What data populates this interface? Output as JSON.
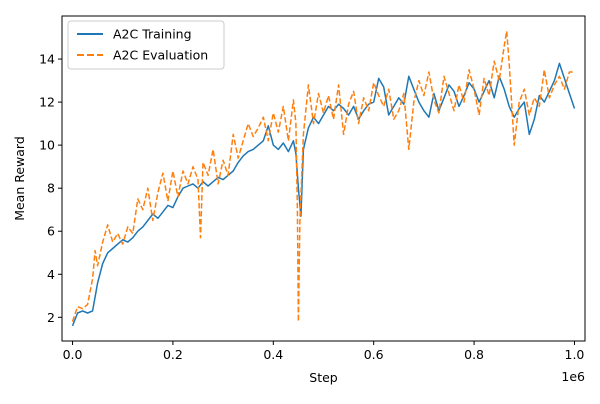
{
  "chart_data": {
    "type": "line",
    "title": "",
    "xlabel": "Step",
    "ylabel": "Mean Reward",
    "x_offset_label": "1e6",
    "x_scale": 1000000,
    "xlim": [
      -21000,
      1021000
    ],
    "ylim": [
      0.9,
      16.0
    ],
    "x_ticks": [
      0,
      200000,
      400000,
      600000,
      800000,
      1000000
    ],
    "x_tick_labels": [
      "0.0",
      "0.2",
      "0.4",
      "0.6",
      "0.8",
      "1.0"
    ],
    "y_ticks": [
      2,
      4,
      6,
      8,
      10,
      12,
      14
    ],
    "y_tick_labels": [
      "2",
      "4",
      "6",
      "8",
      "10",
      "12",
      "14"
    ],
    "grid": false,
    "legend_position": "top-left",
    "colors": {
      "training": "#1f77b4",
      "evaluation": "#ff7f0e"
    },
    "series": [
      {
        "name": "A2C Training",
        "style": "solid",
        "color": "#1f77b4",
        "x": [
          0,
          10000,
          20000,
          30000,
          40000,
          50000,
          60000,
          70000,
          80000,
          90000,
          100000,
          110000,
          120000,
          130000,
          140000,
          150000,
          160000,
          170000,
          180000,
          190000,
          200000,
          210000,
          220000,
          230000,
          240000,
          250000,
          260000,
          270000,
          280000,
          290000,
          300000,
          310000,
          320000,
          330000,
          340000,
          350000,
          360000,
          370000,
          380000,
          390000,
          400000,
          410000,
          420000,
          430000,
          440000,
          445000,
          450000,
          455000,
          460000,
          470000,
          480000,
          490000,
          500000,
          510000,
          520000,
          530000,
          540000,
          550000,
          560000,
          570000,
          580000,
          590000,
          600000,
          610000,
          620000,
          630000,
          640000,
          650000,
          660000,
          670000,
          680000,
          690000,
          700000,
          710000,
          720000,
          730000,
          740000,
          750000,
          760000,
          770000,
          780000,
          790000,
          800000,
          810000,
          820000,
          830000,
          840000,
          850000,
          860000,
          870000,
          880000,
          890000,
          900000,
          910000,
          920000,
          930000,
          940000,
          950000,
          960000,
          970000,
          980000,
          990000,
          1000000
        ],
        "y": [
          1.6,
          2.2,
          2.3,
          2.2,
          2.3,
          3.6,
          4.5,
          5.0,
          5.2,
          5.4,
          5.6,
          5.5,
          5.7,
          6.0,
          6.2,
          6.5,
          6.8,
          6.6,
          6.9,
          7.2,
          7.1,
          7.6,
          8.0,
          8.1,
          8.2,
          8.0,
          8.3,
          8.1,
          8.3,
          8.5,
          8.4,
          8.6,
          8.8,
          9.2,
          9.5,
          9.7,
          9.8,
          10.0,
          10.2,
          10.9,
          10.0,
          9.8,
          10.1,
          9.7,
          10.2,
          9.6,
          8.0,
          6.7,
          9.8,
          10.8,
          11.3,
          11.0,
          11.4,
          11.8,
          11.6,
          11.9,
          11.7,
          11.4,
          11.8,
          11.2,
          11.6,
          11.9,
          12.0,
          13.1,
          12.7,
          11.4,
          11.8,
          12.2,
          11.9,
          13.2,
          12.6,
          12.0,
          11.6,
          11.3,
          12.4,
          11.6,
          12.2,
          12.8,
          12.5,
          11.8,
          12.3,
          12.9,
          12.6,
          12.0,
          12.5,
          13.0,
          12.2,
          13.2,
          12.6,
          11.8,
          11.3,
          11.7,
          12.0,
          10.5,
          11.2,
          12.3,
          12.0,
          12.5,
          13.0,
          13.8,
          13.1,
          12.4,
          11.7
        ]
      },
      {
        "name": "A2C Evaluation",
        "style": "dashed",
        "color": "#ff7f0e",
        "x": [
          0,
          10000,
          20000,
          30000,
          40000,
          45000,
          50000,
          60000,
          70000,
          80000,
          90000,
          100000,
          110000,
          120000,
          130000,
          140000,
          150000,
          160000,
          170000,
          180000,
          190000,
          200000,
          210000,
          220000,
          230000,
          240000,
          250000,
          255000,
          260000,
          270000,
          280000,
          290000,
          300000,
          310000,
          320000,
          330000,
          340000,
          350000,
          360000,
          370000,
          380000,
          390000,
          400000,
          410000,
          420000,
          430000,
          440000,
          445000,
          448000,
          450000,
          453000,
          460000,
          470000,
          480000,
          490000,
          500000,
          510000,
          520000,
          530000,
          540000,
          550000,
          560000,
          570000,
          580000,
          590000,
          600000,
          610000,
          620000,
          630000,
          640000,
          650000,
          660000,
          670000,
          680000,
          690000,
          700000,
          710000,
          720000,
          730000,
          740000,
          750000,
          760000,
          770000,
          780000,
          790000,
          800000,
          810000,
          820000,
          830000,
          840000,
          850000,
          860000,
          865000,
          870000,
          880000,
          890000,
          900000,
          910000,
          920000,
          930000,
          940000,
          950000,
          960000,
          970000,
          980000,
          990000,
          1000000
        ],
        "y": [
          1.8,
          2.5,
          2.4,
          2.6,
          3.8,
          5.1,
          4.4,
          5.5,
          6.3,
          5.5,
          5.9,
          5.4,
          6.2,
          5.9,
          7.5,
          7.0,
          8.0,
          6.5,
          7.8,
          8.7,
          7.4,
          8.8,
          7.6,
          8.8,
          8.2,
          9.0,
          8.4,
          5.7,
          9.2,
          8.6,
          9.8,
          8.2,
          9.3,
          8.6,
          10.5,
          9.4,
          10.2,
          11.0,
          10.4,
          10.8,
          11.3,
          10.2,
          11.5,
          10.6,
          11.8,
          10.2,
          12.1,
          11.0,
          7.0,
          1.8,
          6.5,
          10.5,
          12.8,
          11.0,
          12.4,
          11.5,
          12.3,
          11.2,
          12.8,
          10.5,
          11.9,
          12.5,
          11.0,
          12.2,
          11.6,
          12.9,
          12.3,
          11.8,
          12.6,
          11.2,
          11.6,
          12.4,
          9.8,
          12.0,
          13.0,
          12.3,
          13.4,
          12.1,
          11.5,
          13.2,
          12.4,
          11.6,
          12.8,
          12.0,
          13.5,
          12.6,
          11.4,
          13.1,
          12.3,
          13.9,
          13.0,
          14.6,
          15.3,
          13.8,
          10.0,
          12.0,
          12.6,
          11.4,
          12.2,
          11.8,
          13.5,
          12.2,
          12.8,
          13.2,
          12.6,
          13.4,
          13.4
        ]
      }
    ]
  }
}
